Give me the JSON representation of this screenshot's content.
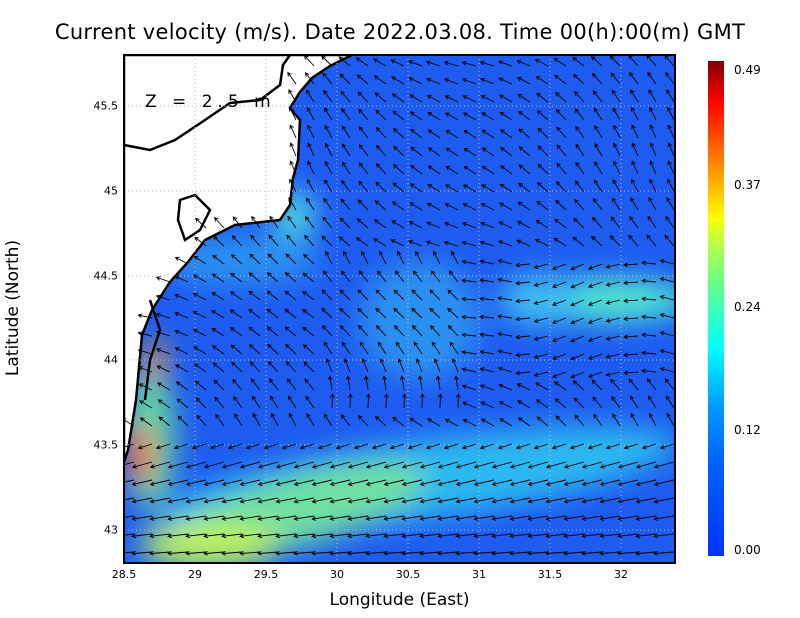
{
  "title": "Current velocity (m/s). Date 2022.03.08. Time 00(h):00(m) GMT",
  "depth_label": "Z = 2.5 m",
  "xaxis": {
    "label": "Longitude (East)",
    "ticks": [
      "28.5",
      "29",
      "29.5",
      "30",
      "30.5",
      "31",
      "31.5",
      "32"
    ],
    "range": [
      28.5,
      32.38
    ]
  },
  "yaxis": {
    "label": "Latitude (North)",
    "ticks": [
      "43",
      "43.5",
      "44",
      "44.5",
      "45",
      "45.5"
    ],
    "range": [
      42.8,
      45.8
    ]
  },
  "colorbar": {
    "ticks": [
      "0.00",
      "0.12",
      "0.24",
      "0.37",
      "0.49"
    ],
    "range": [
      0,
      0.49
    ],
    "colors": [
      "#0033ff",
      "#00ffff",
      "#ffff00",
      "#ff0000",
      "#800000"
    ]
  },
  "grid": "dotted",
  "land_color": "#ffffff",
  "water_base_color": "#1e5cf0"
}
